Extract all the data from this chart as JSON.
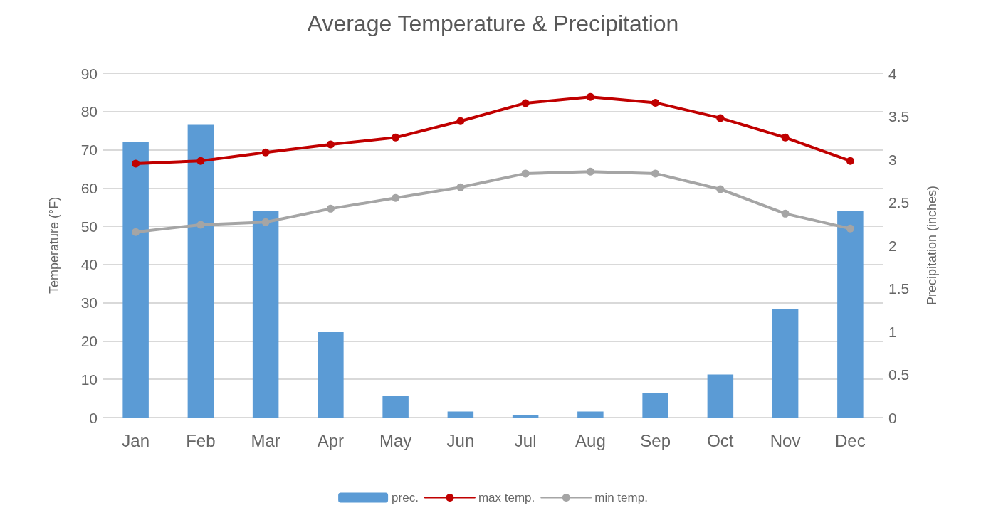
{
  "chart_data": {
    "type": "line",
    "title": "Average Temperature & Precipitation",
    "categories": [
      "Jan",
      "Feb",
      "Mar",
      "Apr",
      "May",
      "Jun",
      "Jul",
      "Aug",
      "Sep",
      "Oct",
      "Nov",
      "Dec"
    ],
    "series": [
      {
        "name": "prec.",
        "type": "bar",
        "axis": "y2",
        "color": "#5b9bd5",
        "values": [
          3.2,
          3.4,
          2.4,
          1.0,
          0.25,
          0.07,
          0.03,
          0.07,
          0.29,
          0.5,
          1.26,
          2.4
        ]
      },
      {
        "name": "max temp.",
        "color": "#c00000",
        "values": [
          66.4,
          67.1,
          69.3,
          71.4,
          73.2,
          77.5,
          82.2,
          83.8,
          82.3,
          78.3,
          73.2,
          67.1
        ]
      },
      {
        "name": "min temp.",
        "color": "#a5a5a5",
        "values": [
          48.5,
          50.4,
          51.1,
          54.6,
          57.4,
          60.2,
          63.8,
          64.3,
          63.8,
          59.7,
          53.3,
          49.4
        ]
      }
    ],
    "ylabel": "Temperature (°F)",
    "y2label": "Precipitation (inches)",
    "ylim": [
      0,
      90
    ],
    "yticks": [
      0,
      10,
      20,
      30,
      40,
      50,
      60,
      70,
      80,
      90
    ],
    "y2lim": [
      0,
      4
    ],
    "y2ticks": [
      0,
      0.5,
      1,
      1.5,
      2,
      2.5,
      3,
      3.5,
      4
    ],
    "grid": "y",
    "legend": "bottom",
    "marker": "circle",
    "line_style": "solid"
  }
}
